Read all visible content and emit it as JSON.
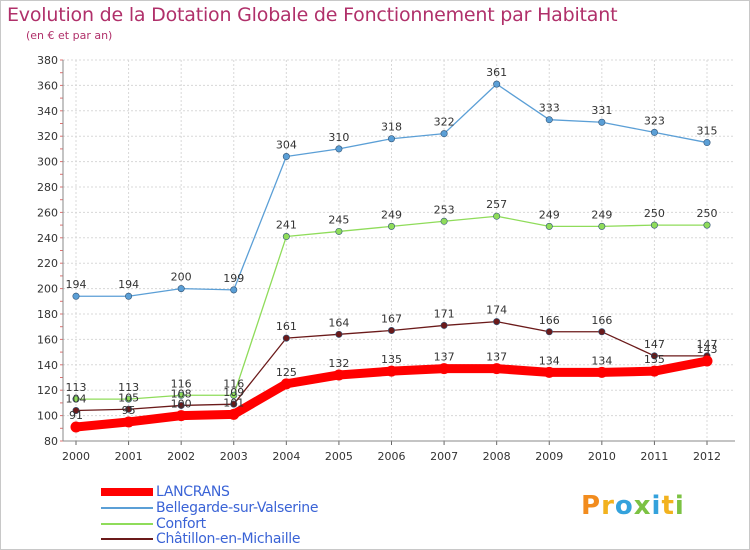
{
  "header": {
    "title": "Evolution de la Dotation Globale de Fonctionnement par Habitant",
    "subtitle": "(en € et par an)"
  },
  "logo": {
    "letters": [
      "P",
      "r",
      "o",
      "x",
      "i",
      "t",
      "i"
    ],
    "colors": [
      "#f28c1e",
      "#f2b21e",
      "#34a2dc",
      "#7cc243",
      "#34a2dc",
      "#f2b21e",
      "#7cc243"
    ]
  },
  "chart_data": {
    "type": "line",
    "title": "Evolution de la Dotation Globale de Fonctionnement par Habitant",
    "subtitle": "(en € et par an)",
    "xlabel": "",
    "ylabel": "",
    "ylim": [
      80,
      380
    ],
    "ytick_step": 20,
    "grid": true,
    "legend_position": "bottom-left",
    "categories": [
      "2000",
      "2001",
      "2002",
      "2003",
      "2004",
      "2005",
      "2006",
      "2007",
      "2008",
      "2009",
      "2010",
      "2011",
      "2012"
    ],
    "series": [
      {
        "name": "LANCRANS",
        "color": "#ff0000",
        "values": [
          91,
          95,
          100,
          101,
          125,
          132,
          135,
          137,
          137,
          134,
          134,
          135,
          143
        ],
        "labels": [
          "91",
          "95",
          "100",
          "101",
          "125",
          "132",
          "135",
          "137",
          "137",
          "134",
          "134",
          "135",
          "143"
        ]
      },
      {
        "name": "Bellegarde-sur-Valserine",
        "color": "#5b9fd6",
        "values": [
          194,
          194,
          200,
          199,
          304,
          310,
          318,
          322,
          361,
          333,
          331,
          323,
          315
        ],
        "labels": [
          "194",
          "194",
          "200",
          "199",
          "304",
          "310",
          "318",
          "322",
          "361",
          "333",
          "331",
          "323",
          "315"
        ]
      },
      {
        "name": "Confort",
        "color": "#8fdc5a",
        "values": [
          113,
          113,
          116,
          116,
          241,
          245,
          249,
          253,
          257,
          249,
          249,
          250,
          250
        ],
        "labels": [
          "113",
          "113",
          "116",
          "116",
          "241",
          "245",
          "249",
          "253",
          "257",
          "249",
          "249",
          "250",
          "250"
        ]
      },
      {
        "name": "Châtillon-en-Michaille",
        "color": "#6b1a1a",
        "values": [
          104,
          105,
          108,
          109,
          161,
          164,
          167,
          171,
          174,
          166,
          166,
          147,
          147
        ],
        "labels": [
          "104",
          "105",
          "108",
          "109",
          "161",
          "164",
          "167",
          "171",
          "174",
          "166",
          "166",
          "147",
          "147"
        ]
      }
    ]
  }
}
